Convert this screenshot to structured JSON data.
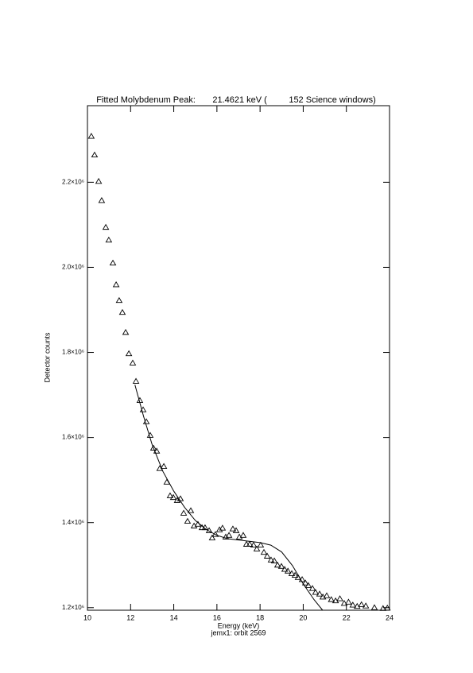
{
  "chart_data": {
    "type": "scatter",
    "title": "Fitted Molybdenum Peak:       21.4621 keV (         152 Science windows)",
    "xlabel": "Energy (keV)",
    "ylabel": "Detector counts",
    "footnote": "jemx1: orbit 2569",
    "xlim": [
      10,
      24
    ],
    "xticks": [
      10,
      12,
      14,
      16,
      18,
      20,
      22,
      24
    ],
    "ylim": [
      1194000,
      2380000
    ],
    "yticks": [
      {
        "value": 1200000,
        "label": "1.2×10⁶"
      },
      {
        "value": 1400000,
        "label": "1.4×10⁶"
      },
      {
        "value": 1600000,
        "label": "1.6×10⁶"
      },
      {
        "value": 1800000,
        "label": "1.8×10⁶"
      },
      {
        "value": 2000000,
        "label": "2.0×10⁶"
      },
      {
        "value": 2200000,
        "label": "2.2×10⁶"
      }
    ],
    "series": [
      {
        "marker": "triangle",
        "color": "#000000",
        "x": [
          10.18,
          10.33,
          10.52,
          10.66,
          10.85,
          10.99,
          11.18,
          11.33,
          11.47,
          11.62,
          11.77,
          11.92,
          12.1,
          12.25,
          12.43,
          12.58,
          12.73,
          12.91,
          13.06,
          13.21,
          13.35,
          13.54,
          13.68,
          13.83,
          13.98,
          14.16,
          14.31,
          14.46,
          14.64,
          14.79,
          14.94,
          15.12,
          15.31,
          15.45,
          15.64,
          15.78,
          15.93,
          16.12,
          16.26,
          16.41,
          16.56,
          16.74,
          16.89,
          17.04,
          17.22,
          17.37,
          17.52,
          17.7,
          17.85,
          18.03,
          18.18,
          18.33,
          18.51,
          18.66,
          18.81,
          18.99,
          19.14,
          19.29,
          19.47,
          19.62,
          19.76,
          19.95,
          20.1,
          20.24,
          20.43,
          20.57,
          20.76,
          20.91,
          21.09,
          21.3,
          21.5,
          21.7,
          21.9,
          22.1,
          22.3,
          22.5,
          22.7,
          22.9,
          23.3,
          23.7,
          23.9
        ],
        "values": [
          2308000,
          2264000,
          2202000,
          2157000,
          2094000,
          2064000,
          2010000,
          1959000,
          1922000,
          1894000,
          1847000,
          1797000,
          1775000,
          1732000,
          1687000,
          1665000,
          1637000,
          1605000,
          1575000,
          1568000,
          1527000,
          1532000,
          1495000,
          1463000,
          1459000,
          1452000,
          1456000,
          1422000,
          1403000,
          1428000,
          1392000,
          1396000,
          1388000,
          1388000,
          1381000,
          1364000,
          1372000,
          1383000,
          1387000,
          1366000,
          1370000,
          1385000,
          1381000,
          1366000,
          1370000,
          1349000,
          1349000,
          1347000,
          1338000,
          1347000,
          1330000,
          1321000,
          1312000,
          1310000,
          1300000,
          1297000,
          1290000,
          1286000,
          1280000,
          1276000,
          1271000,
          1266000,
          1258000,
          1252000,
          1245000,
          1236000,
          1232000,
          1225000,
          1228000,
          1219000,
          1216000,
          1221000,
          1210000,
          1213000,
          1206000,
          1203000,
          1207000,
          1204000,
          1200000,
          1198000,
          1199000
        ]
      },
      {
        "marker": "line",
        "color": "#000000",
        "x": [
          12.2,
          12.6,
          13,
          13.5,
          14,
          14.5,
          15,
          15.5,
          16,
          16.5,
          17,
          17.5,
          18,
          18.5,
          19,
          19.5,
          20,
          20.5,
          20.9
        ],
        "values": [
          1724000,
          1650000,
          1583000,
          1520000,
          1474000,
          1436000,
          1405000,
          1384000,
          1370000,
          1362000,
          1359000,
          1356000,
          1353000,
          1347000,
          1331000,
          1299000,
          1256000,
          1219000,
          1194000
        ]
      }
    ]
  }
}
